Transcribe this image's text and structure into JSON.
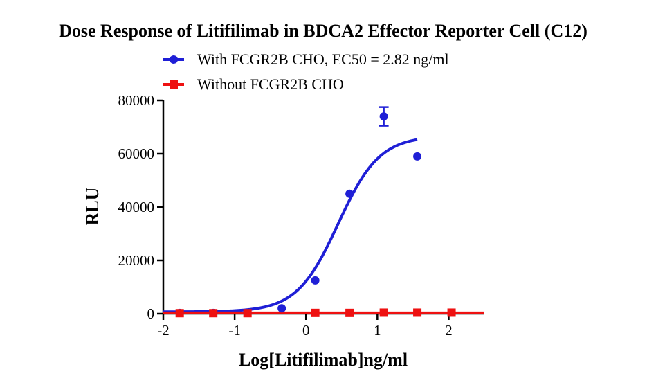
{
  "chart_data": {
    "type": "scatter",
    "title": "Dose Response of Litifilimab in BDCA2 Effector Reporter Cell (C12)",
    "xlabel": "Log[Litifilimab]ng/ml",
    "ylabel": "RLU",
    "xlim": [
      -2,
      2.5
    ],
    "ylim": [
      0,
      80000
    ],
    "x_ticks": [
      -2,
      -1,
      0,
      1,
      2
    ],
    "x_tick_labels": [
      "-2",
      "-1",
      "0",
      "1",
      "2"
    ],
    "y_ticks": [
      0,
      20000,
      40000,
      60000,
      80000
    ],
    "y_tick_labels": [
      "0",
      "20000",
      "40000",
      "60000",
      "80000"
    ],
    "grid": false,
    "legend_position": "top-center",
    "series": [
      {
        "name": "With FCGR2B CHO, EC50 = 2.82 ng/ml",
        "color": "#1f1fd6",
        "marker": "circle",
        "x": [
          -1.77,
          -1.3,
          -0.82,
          -0.34,
          0.13,
          0.61,
          1.09,
          1.56
        ],
        "y": [
          300,
          300,
          400,
          2000,
          12500,
          45000,
          74000,
          59000
        ],
        "y_err": [
          0,
          0,
          0,
          0,
          0,
          0,
          3500,
          0
        ],
        "fit": {
          "model": "4PL",
          "bottom": 700,
          "top": 66700,
          "log_ec50": 0.45,
          "hill": 1.5,
          "x_range": [
            -2,
            1.56
          ]
        }
      },
      {
        "name": "Without FCGR2B CHO",
        "color": "#ee1111",
        "marker": "square",
        "x": [
          -1.77,
          -1.3,
          -0.82,
          0.13,
          0.61,
          1.09,
          1.56,
          2.04
        ],
        "y": [
          200,
          200,
          200,
          300,
          300,
          400,
          400,
          400
        ],
        "fit": {
          "model": "flat",
          "value": 300,
          "x_range": [
            -2,
            2.5
          ]
        }
      }
    ]
  }
}
